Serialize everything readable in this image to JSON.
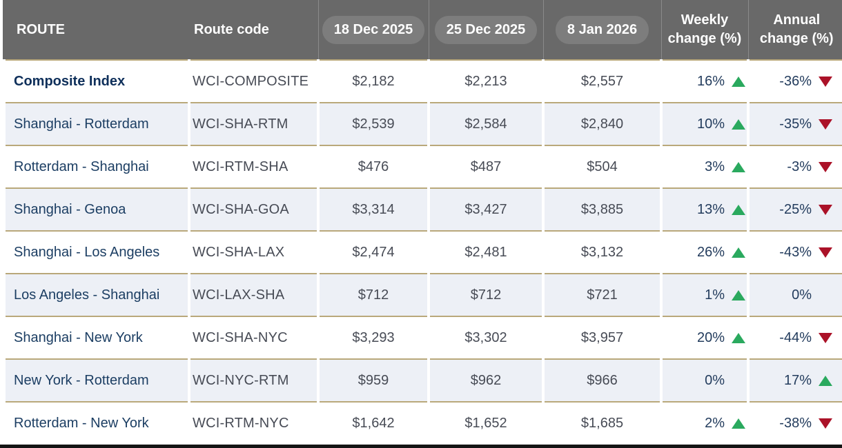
{
  "colors": {
    "header_bg": "#696969",
    "pill_bg": "#7d7d7d",
    "header_divider": "#8a8a8a",
    "gold_line": "#b9a87a",
    "stripe_bg": "#edf0f6",
    "navy": "#1c3e63",
    "navy_dark": "#0e2f5a",
    "gray_text": "#474b55",
    "pct_text": "#233c5d",
    "green": "#2aa95e",
    "red": "#ab1228"
  },
  "header": {
    "route_label": "ROUTE",
    "route_code_label": "Route code",
    "date_columns": [
      "18 Dec 2025",
      "25 Dec 2025",
      "8 Jan 2026"
    ],
    "weekly": {
      "line1": "Weekly",
      "line2": "change (%)"
    },
    "annual": {
      "line1": "Annual",
      "line2": "change (%)"
    }
  },
  "chart_data": {
    "type": "table",
    "columns": [
      "ROUTE",
      "Route code",
      "18 Dec 2025",
      "25 Dec 2025",
      "8 Jan 2026",
      "Weekly change (%)",
      "Annual change (%)"
    ],
    "rows": [
      {
        "route": "Composite Index",
        "code": "WCI-COMPOSITE",
        "prices": [
          "$2,182",
          "$2,213",
          "$2,557"
        ],
        "weekly": {
          "value": "16%",
          "dir": "up"
        },
        "annual": {
          "value": "-36%",
          "dir": "down"
        },
        "emphasis": true
      },
      {
        "route": "Shanghai - Rotterdam",
        "code": "WCI-SHA-RTM",
        "prices": [
          "$2,539",
          "$2,584",
          "$2,840"
        ],
        "weekly": {
          "value": "10%",
          "dir": "up"
        },
        "annual": {
          "value": "-35%",
          "dir": "down"
        },
        "emphasis": false
      },
      {
        "route": "Rotterdam - Shanghai",
        "code": "WCI-RTM-SHA",
        "prices": [
          "$476",
          "$487",
          "$504"
        ],
        "weekly": {
          "value": "3%",
          "dir": "up"
        },
        "annual": {
          "value": "-3%",
          "dir": "down"
        },
        "emphasis": false
      },
      {
        "route": "Shanghai - Genoa",
        "code": "WCI-SHA-GOA",
        "prices": [
          "$3,314",
          "$3,427",
          "$3,885"
        ],
        "weekly": {
          "value": "13%",
          "dir": "up"
        },
        "annual": {
          "value": "-25%",
          "dir": "down"
        },
        "emphasis": false
      },
      {
        "route": "Shanghai - Los Angeles",
        "code": "WCI-SHA-LAX",
        "prices": [
          "$2,474",
          "$2,481",
          "$3,132"
        ],
        "weekly": {
          "value": "26%",
          "dir": "up"
        },
        "annual": {
          "value": "-43%",
          "dir": "down"
        },
        "emphasis": false
      },
      {
        "route": "Los Angeles - Shanghai",
        "code": "WCI-LAX-SHA",
        "prices": [
          "$712",
          "$712",
          "$721"
        ],
        "weekly": {
          "value": "1%",
          "dir": "up"
        },
        "annual": {
          "value": "0%",
          "dir": "none"
        },
        "emphasis": false
      },
      {
        "route": "Shanghai - New York",
        "code": "WCI-SHA-NYC",
        "prices": [
          "$3,293",
          "$3,302",
          "$3,957"
        ],
        "weekly": {
          "value": "20%",
          "dir": "up"
        },
        "annual": {
          "value": "-44%",
          "dir": "down"
        },
        "emphasis": false
      },
      {
        "route": "New York - Rotterdam",
        "code": "WCI-NYC-RTM",
        "prices": [
          "$959",
          "$962",
          "$966"
        ],
        "weekly": {
          "value": "0%",
          "dir": "none"
        },
        "annual": {
          "value": "17%",
          "dir": "up"
        },
        "emphasis": false
      },
      {
        "route": "Rotterdam - New York",
        "code": "WCI-RTM-NYC",
        "prices": [
          "$1,642",
          "$1,652",
          "$1,685"
        ],
        "weekly": {
          "value": "2%",
          "dir": "up"
        },
        "annual": {
          "value": "-38%",
          "dir": "down"
        },
        "emphasis": false
      }
    ]
  }
}
